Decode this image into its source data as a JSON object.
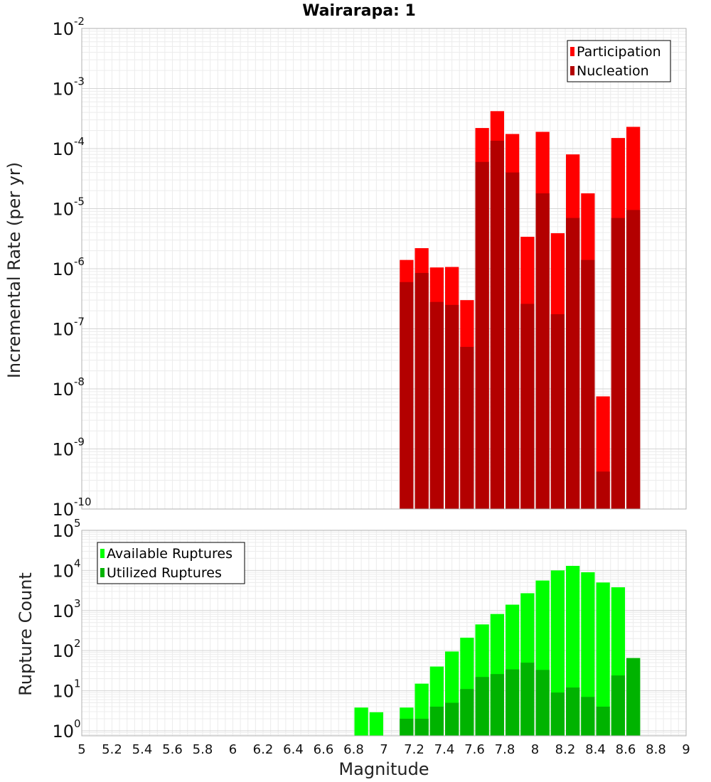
{
  "chart_data": [
    {
      "type": "bar",
      "title": "Wairarapa: 1",
      "xlabel": "Magnitude",
      "ylabel": "Incremental Rate (per yr)",
      "yscale": "log",
      "ylim": [
        1e-10,
        0.01
      ],
      "xlim": [
        5,
        9
      ],
      "bin_width": 0.1,
      "legend_position": "top-right",
      "colors": {
        "Participation": "#ff0000",
        "Nucleation": "#b30000"
      },
      "x": [
        7.15,
        7.25,
        7.35,
        7.45,
        7.55,
        7.65,
        7.75,
        7.85,
        7.95,
        8.05,
        8.15,
        8.25,
        8.35,
        8.45,
        8.55,
        8.65
      ],
      "series": [
        {
          "name": "Participation",
          "values": [
            1.4e-06,
            2.2e-06,
            1.05e-06,
            1.07e-06,
            3e-07,
            0.00022,
            0.00042,
            0.000175,
            3.4e-06,
            0.00019,
            3.9e-06,
            8e-05,
            1.8e-05,
            7.5e-09,
            0.00015,
            0.00023
          ]
        },
        {
          "name": "Nucleation",
          "values": [
            6e-07,
            8.5e-07,
            2.8e-07,
            2.5e-07,
            5e-08,
            6e-05,
            0.000135,
            4e-05,
            2.6e-07,
            1.8e-05,
            1.75e-07,
            7e-06,
            1.4e-06,
            4.2e-10,
            7e-06,
            9.5e-06
          ]
        }
      ],
      "y_ticks": [
        {
          "base": "10",
          "exp": "-10",
          "value": 1e-10
        },
        {
          "base": "10",
          "exp": "-9",
          "value": 1e-09
        },
        {
          "base": "10",
          "exp": "-8",
          "value": 1e-08
        },
        {
          "base": "10",
          "exp": "-7",
          "value": 1e-07
        },
        {
          "base": "10",
          "exp": "-6",
          "value": 1e-06
        },
        {
          "base": "10",
          "exp": "-5",
          "value": 1e-05
        },
        {
          "base": "10",
          "exp": "-4",
          "value": 0.0001
        },
        {
          "base": "10",
          "exp": "-3",
          "value": 0.001
        },
        {
          "base": "10",
          "exp": "-2",
          "value": 0.01
        }
      ]
    },
    {
      "type": "bar",
      "xlabel": "Magnitude",
      "ylabel": "Rupture Count",
      "yscale": "log",
      "ylim": [
        0.75,
        100000
      ],
      "xlim": [
        5,
        9
      ],
      "bin_width": 0.1,
      "legend_position": "top-left",
      "colors": {
        "Available Ruptures": "#00ff00",
        "Utilized Ruptures": "#00b300"
      },
      "x": [
        6.85,
        6.95,
        7.15,
        7.25,
        7.35,
        7.45,
        7.55,
        7.65,
        7.75,
        7.85,
        7.95,
        8.05,
        8.15,
        8.25,
        8.35,
        8.45,
        8.55,
        8.65
      ],
      "series": [
        {
          "name": "Available Ruptures",
          "values": [
            3.8,
            2.9,
            3.8,
            15,
            40,
            95,
            210,
            450,
            820,
            1400,
            2700,
            5600,
            10000,
            13000,
            9000,
            5000,
            3800,
            65
          ]
        },
        {
          "name": "Utilized Ruptures",
          "values": [
            null,
            null,
            2,
            2,
            4,
            5,
            11,
            22,
            26,
            34,
            50,
            33,
            9,
            12,
            7,
            4,
            24,
            65
          ]
        }
      ],
      "y_ticks": [
        {
          "base": "10",
          "exp": "0",
          "value": 1
        },
        {
          "base": "10",
          "exp": "1",
          "value": 10
        },
        {
          "base": "10",
          "exp": "2",
          "value": 100
        },
        {
          "base": "10",
          "exp": "3",
          "value": 1000
        },
        {
          "base": "10",
          "exp": "4",
          "value": 10000
        },
        {
          "base": "10",
          "exp": "5",
          "value": 100000
        }
      ],
      "x_ticks": [
        "5",
        "5.2",
        "5.4",
        "5.6",
        "5.8",
        "6",
        "6.2",
        "6.4",
        "6.6",
        "6.8",
        "7",
        "7.2",
        "7.4",
        "7.6",
        "7.8",
        "8",
        "8.2",
        "8.4",
        "8.6",
        "8.8",
        "9"
      ]
    }
  ]
}
